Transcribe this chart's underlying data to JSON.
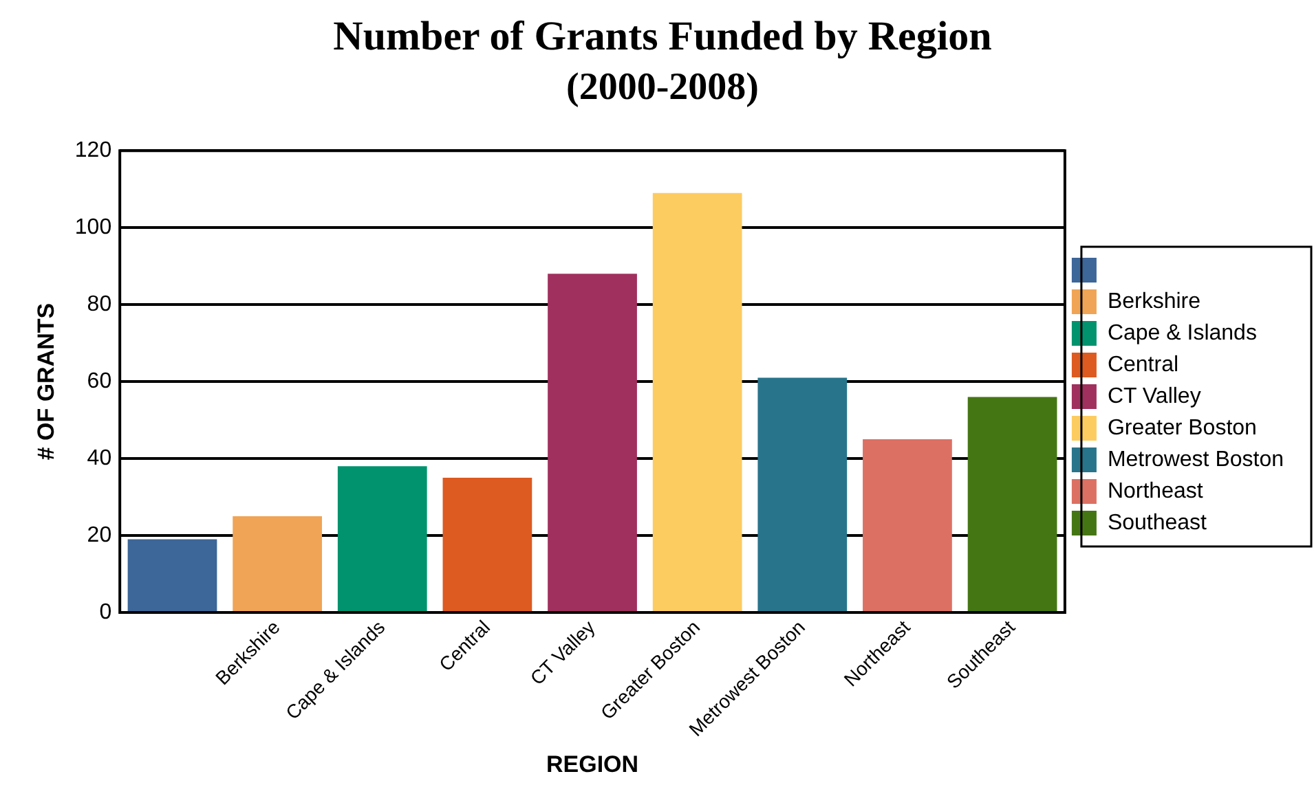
{
  "chart_data": {
    "type": "bar",
    "title": "Number of Grants Funded by Region",
    "subtitle": "(2000-2008)",
    "xlabel": "REGION",
    "ylabel": "# OF GRANTS",
    "categories": [
      null,
      "Berkshire",
      "Cape & Islands",
      "Central",
      "CT Valley",
      "Greater Boston",
      "Metrowest Boston",
      "Northeast",
      "Southeast"
    ],
    "series": [
      {
        "color": "#3d6699",
        "values": [
          19,
          null,
          null,
          null,
          null,
          null,
          null,
          null,
          null
        ]
      },
      {
        "name": "Berkshire",
        "color": "#f0a455",
        "values": [
          null,
          25,
          null,
          null,
          null,
          null,
          null,
          null,
          null
        ]
      },
      {
        "name": "Cape & Islands",
        "color": "#00936e",
        "values": [
          null,
          null,
          38,
          null,
          null,
          null,
          null,
          null,
          null
        ]
      },
      {
        "name": "Central",
        "color": "#dd5a20",
        "values": [
          null,
          null,
          null,
          35,
          null,
          null,
          null,
          null,
          null
        ]
      },
      {
        "name": "CT Valley",
        "color": "#a0305e",
        "values": [
          null,
          null,
          null,
          null,
          88,
          null,
          null,
          null,
          null
        ]
      },
      {
        "name": "Greater Boston",
        "color": "#fdcc60",
        "values": [
          null,
          null,
          null,
          null,
          null,
          109,
          null,
          null,
          null
        ]
      },
      {
        "name": "Metrowest Boston",
        "color": "#28748b",
        "values": [
          null,
          null,
          null,
          null,
          null,
          null,
          61,
          null,
          null
        ]
      },
      {
        "name": "Northeast",
        "color": "#dc7063",
        "values": [
          null,
          null,
          null,
          null,
          null,
          null,
          null,
          45,
          null
        ]
      },
      {
        "name": "Southeast",
        "color": "#457614",
        "values": [
          null,
          null,
          null,
          null,
          null,
          null,
          null,
          null,
          56
        ]
      }
    ],
    "ylim": [
      0,
      120
    ],
    "yticks": [
      0,
      20,
      40,
      60,
      80,
      100,
      120
    ],
    "grid": "y",
    "legend": "right"
  }
}
